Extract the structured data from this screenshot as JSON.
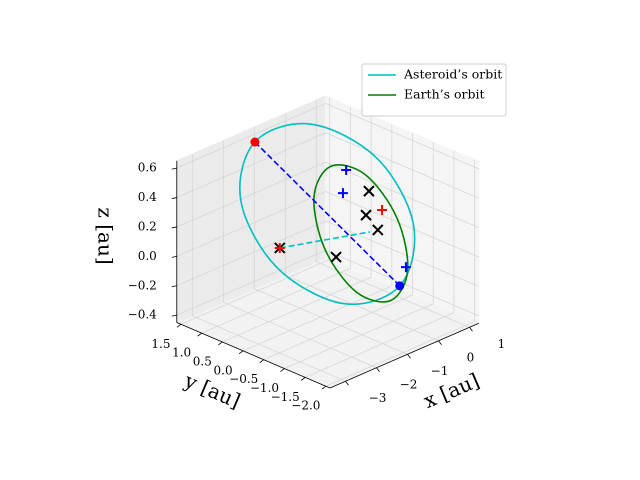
{
  "chart_data": {
    "type": "line3d",
    "xlabel": "x [au]",
    "ylabel": "y [au]",
    "zlabel": "z [au]",
    "xlim": [
      -3.5,
      1.3
    ],
    "ylim": [
      -2.1,
      1.6
    ],
    "zlim": [
      -0.45,
      0.65
    ],
    "xticks": [
      {
        "value": -3,
        "label": "−3"
      },
      {
        "value": -2,
        "label": "−2"
      },
      {
        "value": -1,
        "label": "−1"
      },
      0,
      1
    ],
    "yticks": [
      1.5,
      {
        "value": 1,
        "label": "1.0"
      },
      0.5,
      {
        "value": 0,
        "label": "0.0"
      },
      {
        "value": -0.5,
        "label": "−0.5"
      },
      {
        "value": -1,
        "label": "−1.0"
      },
      {
        "value": -1.5,
        "label": "−1.5"
      },
      {
        "value": -2,
        "label": "−2.0"
      }
    ],
    "zticks": [
      {
        "value": -0.4,
        "label": "−0.4"
      },
      {
        "value": -0.2,
        "label": "−0.2"
      },
      {
        "value": 0,
        "label": "0.0"
      },
      0.2,
      0.4,
      0.6
    ],
    "grid": true,
    "legend": "upper right",
    "series": [
      {
        "name": "Asteroid’s orbit",
        "color": "#00bfbf",
        "closed": true,
        "x": [
          -1.0,
          -1.63,
          -1.45,
          -0.57,
          0.5,
          1.13,
          0.95,
          0.07
        ],
        "y": [
          1.585,
          1.45,
          0.7,
          -0.23,
          -0.79,
          -0.65,
          0.1,
          1.03
        ],
        "z": [
          0.55,
          0.22,
          -0.16,
          -0.37,
          -0.28,
          0.06,
          0.44,
          0.64
        ]
      },
      {
        "name": "Earth’s orbit",
        "color": "#008000",
        "closed": true,
        "x": [
          0.75,
          1.45,
          1.47,
          0.81,
          -0.15,
          -0.85,
          -0.87,
          -0.21
        ],
        "y": [
          -0.39,
          -0.27,
          0.01,
          0.28,
          0.39,
          0.27,
          -0.01,
          -0.28
        ],
        "z": [
          -0.45,
          -0.32,
          0,
          0.32,
          0.45,
          0.32,
          0,
          -0.32
        ]
      },
      {
        "color": "#0000ff",
        "linestyle": "dashed",
        "x": [
          -1.0,
          0.5
        ],
        "y": [
          1.585,
          -0.79
        ],
        "z": [
          0.55,
          -0.28
        ]
      },
      {
        "color": "#00bfbf",
        "linestyle": "dashed",
        "x": [
          -1.54,
          0.5
        ],
        "y": [
          0.58,
          -0.07
        ],
        "z": [
          0,
          0
        ]
      },
      {
        "color": "#ff0000",
        "marker": "o",
        "x": [
          -1.0
        ],
        "y": [
          1.585
        ],
        "z": [
          0.55
        ]
      },
      {
        "color": "#0000ff",
        "marker": "o",
        "x": [
          0.5
        ],
        "y": [
          -0.79
        ],
        "z": [
          -0.28
        ]
      },
      {
        "color": "#000000",
        "marker": "x",
        "x": [
          -1.54,
          -0.98,
          0.36,
          0.24,
          0.7
        ],
        "y": [
          0.58,
          -0.36,
          -0.15,
          -0.17,
          -0.11
        ],
        "z": [
          0,
          0,
          0.3,
          0.15,
          0
        ]
      },
      {
        "color": "#0000ff",
        "marker": "+",
        "x": [
          -0.04,
          -0.13,
          0.86
        ],
        "y": [
          0.1,
          0.11,
          -0.67
        ],
        "z": [
          0.45,
          0.3,
          -0.2
        ]
      },
      {
        "color": "#ff0000",
        "marker": "+",
        "x": [
          -1.54,
          0.69
        ],
        "y": [
          0.58,
          -0.22
        ],
        "z": [
          0,
          0.15
        ]
      }
    ]
  }
}
